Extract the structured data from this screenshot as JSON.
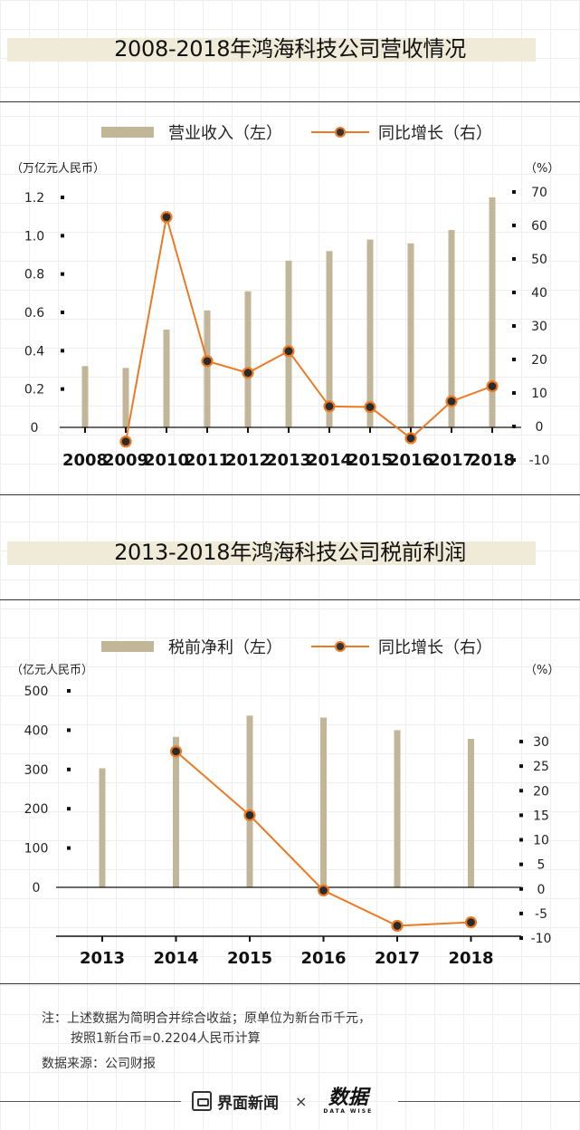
{
  "chart_data": [
    {
      "type": "bar+line",
      "title": "2008-2018年鸿海科技公司营收情况",
      "categories": [
        "2008",
        "2009",
        "2010",
        "2011",
        "2012",
        "2013",
        "2014",
        "2015",
        "2016",
        "2017",
        "2018"
      ],
      "series": [
        {
          "name": "营业收入（左）",
          "type": "bar",
          "axis": "left",
          "values": [
            0.32,
            0.31,
            0.51,
            0.61,
            0.71,
            0.87,
            0.92,
            0.98,
            0.96,
            1.03,
            1.2
          ]
        },
        {
          "name": "同比增长（右）",
          "type": "line",
          "axis": "right",
          "values": [
            null,
            -4.5,
            62.5,
            19.5,
            16,
            22.5,
            6,
            5.8,
            -3.5,
            7.5,
            12
          ]
        }
      ],
      "left_axis": {
        "label": "（万亿元人民币）",
        "ticks": [
          "1.2",
          "1.0",
          "0.8",
          "0.6",
          "0.4",
          "0.2",
          "0"
        ],
        "range": [
          0,
          1.2
        ]
      },
      "right_axis": {
        "label": "（%）",
        "ticks": [
          "70",
          "60",
          "50",
          "40",
          "30",
          "20",
          "10",
          "0",
          "-10"
        ],
        "range": [
          -10,
          70
        ]
      },
      "legend_position": "top",
      "colors": {
        "bar": "#c2b699",
        "line": "#ec7a24"
      }
    },
    {
      "type": "bar+line",
      "title": "2013-2018年鸿海科技公司税前利润",
      "categories": [
        "2013",
        "2014",
        "2015",
        "2016",
        "2017",
        "2018"
      ],
      "series": [
        {
          "name": "税前净利（左）",
          "type": "bar",
          "axis": "left",
          "values": [
            303,
            383,
            437,
            432,
            400,
            378
          ]
        },
        {
          "name": "同比增长（右）",
          "type": "line",
          "axis": "right",
          "values": [
            null,
            28,
            15,
            -0.3,
            -7.5,
            -6.8
          ]
        }
      ],
      "left_axis": {
        "label": "（亿元人民币）",
        "ticks": [
          "500",
          "400",
          "300",
          "200",
          "100",
          "0"
        ],
        "range": [
          0,
          500
        ]
      },
      "right_axis": {
        "label": "（%）",
        "ticks": [
          "30",
          "25",
          "20",
          "15",
          "10",
          "5",
          "0",
          "-5",
          "-10"
        ],
        "range": [
          -10,
          30
        ]
      },
      "legend_position": "top",
      "colors": {
        "bar": "#c2b699",
        "line": "#ec7a24"
      }
    }
  ],
  "notes": {
    "line1": "注：上述数据为简明合并综合收益；原单位为新台币千元，",
    "line2": "按照1新台币=0.2204人民币计算",
    "source": "数据来源：公司财报"
  },
  "footer": {
    "brand": "界面新闻",
    "separator": "×",
    "partner": "数据",
    "partner_sub": "DATA WISE"
  }
}
